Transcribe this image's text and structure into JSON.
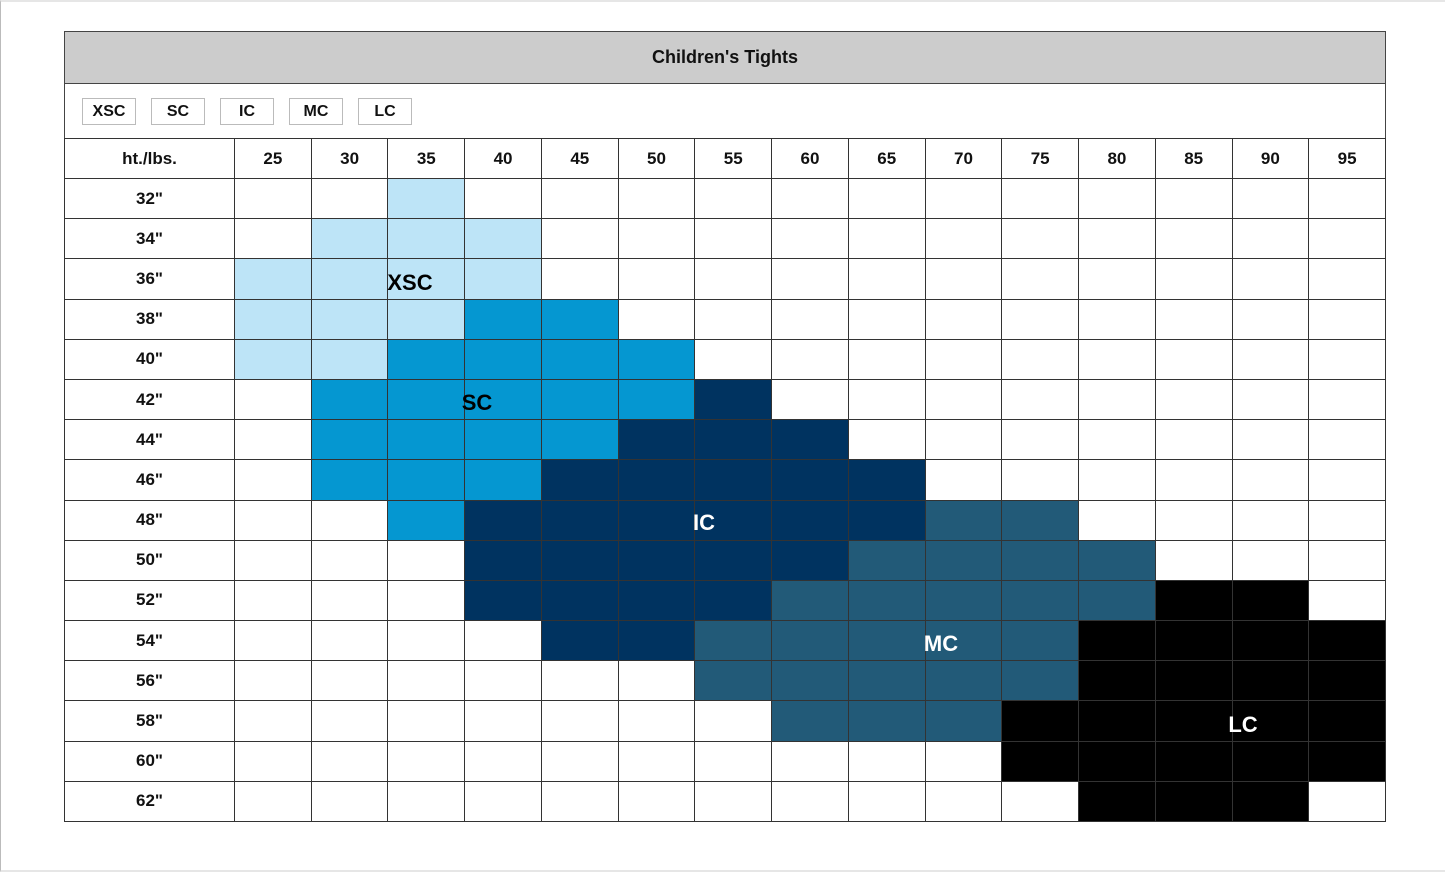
{
  "header": {
    "title": "Children's Tights"
  },
  "sizes": [
    {
      "code": "XSC",
      "color": "#bde4f7",
      "text_color": "#000000"
    },
    {
      "code": "SC",
      "color": "#0597d1",
      "text_color": "#000000"
    },
    {
      "code": "IC",
      "color": "#003360",
      "text_color": "#ffffff"
    },
    {
      "code": "MC",
      "color": "#225a78",
      "text_color": "#ffffff"
    },
    {
      "code": "LC",
      "color": "#000000",
      "text_color": "#ffffff"
    }
  ],
  "table": {
    "corner": "ht./lbs.",
    "columns": [
      "25",
      "30",
      "35",
      "40",
      "45",
      "50",
      "55",
      "60",
      "65",
      "70",
      "75",
      "80",
      "85",
      "90",
      "95"
    ],
    "rows": [
      {
        "height": "32\"",
        "cells": [
          null,
          null,
          "XSC",
          null,
          null,
          null,
          null,
          null,
          null,
          null,
          null,
          null,
          null,
          null,
          null
        ]
      },
      {
        "height": "34\"",
        "cells": [
          null,
          "XSC",
          "XSC",
          "XSC",
          null,
          null,
          null,
          null,
          null,
          null,
          null,
          null,
          null,
          null,
          null
        ]
      },
      {
        "height": "36\"",
        "cells": [
          "XSC",
          "XSC",
          "XSC",
          "XSC",
          null,
          null,
          null,
          null,
          null,
          null,
          null,
          null,
          null,
          null,
          null
        ]
      },
      {
        "height": "38\"",
        "cells": [
          "XSC",
          "XSC",
          "XSC",
          "SC",
          "SC",
          null,
          null,
          null,
          null,
          null,
          null,
          null,
          null,
          null,
          null
        ]
      },
      {
        "height": "40\"",
        "cells": [
          "XSC",
          "XSC",
          "SC",
          "SC",
          "SC",
          "SC",
          null,
          null,
          null,
          null,
          null,
          null,
          null,
          null,
          null
        ]
      },
      {
        "height": "42\"",
        "cells": [
          null,
          "SC",
          "SC",
          "SC",
          "SC",
          "SC",
          "IC",
          null,
          null,
          null,
          null,
          null,
          null,
          null,
          null
        ]
      },
      {
        "height": "44\"",
        "cells": [
          null,
          "SC",
          "SC",
          "SC",
          "SC",
          "IC",
          "IC",
          "IC",
          null,
          null,
          null,
          null,
          null,
          null,
          null
        ]
      },
      {
        "height": "46\"",
        "cells": [
          null,
          "SC",
          "SC",
          "SC",
          "IC",
          "IC",
          "IC",
          "IC",
          "IC",
          null,
          null,
          null,
          null,
          null,
          null
        ]
      },
      {
        "height": "48\"",
        "cells": [
          null,
          null,
          "SC",
          "IC",
          "IC",
          "IC",
          "IC",
          "IC",
          "IC",
          "MC",
          "MC",
          null,
          null,
          null,
          null
        ]
      },
      {
        "height": "50\"",
        "cells": [
          null,
          null,
          null,
          "IC",
          "IC",
          "IC",
          "IC",
          "IC",
          "MC",
          "MC",
          "MC",
          "MC",
          null,
          null,
          null
        ]
      },
      {
        "height": "52\"",
        "cells": [
          null,
          null,
          null,
          "IC",
          "IC",
          "IC",
          "IC",
          "MC",
          "MC",
          "MC",
          "MC",
          "MC",
          "LC",
          "LC",
          null
        ]
      },
      {
        "height": "54\"",
        "cells": [
          null,
          null,
          null,
          null,
          "IC",
          "IC",
          "MC",
          "MC",
          "MC",
          "MC",
          "MC",
          "LC",
          "LC",
          "LC",
          "LC"
        ]
      },
      {
        "height": "56\"",
        "cells": [
          null,
          null,
          null,
          null,
          null,
          null,
          "MC",
          "MC",
          "MC",
          "MC",
          "MC",
          "LC",
          "LC",
          "LC",
          "LC"
        ]
      },
      {
        "height": "58\"",
        "cells": [
          null,
          null,
          null,
          null,
          null,
          null,
          null,
          "MC",
          "MC",
          "MC",
          "LC",
          "LC",
          "LC",
          "LC",
          "LC"
        ]
      },
      {
        "height": "60\"",
        "cells": [
          null,
          null,
          null,
          null,
          null,
          null,
          null,
          null,
          null,
          null,
          "LC",
          "LC",
          "LC",
          "LC",
          "LC"
        ]
      },
      {
        "height": "62\"",
        "cells": [
          null,
          null,
          null,
          null,
          null,
          null,
          null,
          null,
          null,
          null,
          null,
          "LC",
          "LC",
          "LC",
          null
        ]
      }
    ]
  }
}
